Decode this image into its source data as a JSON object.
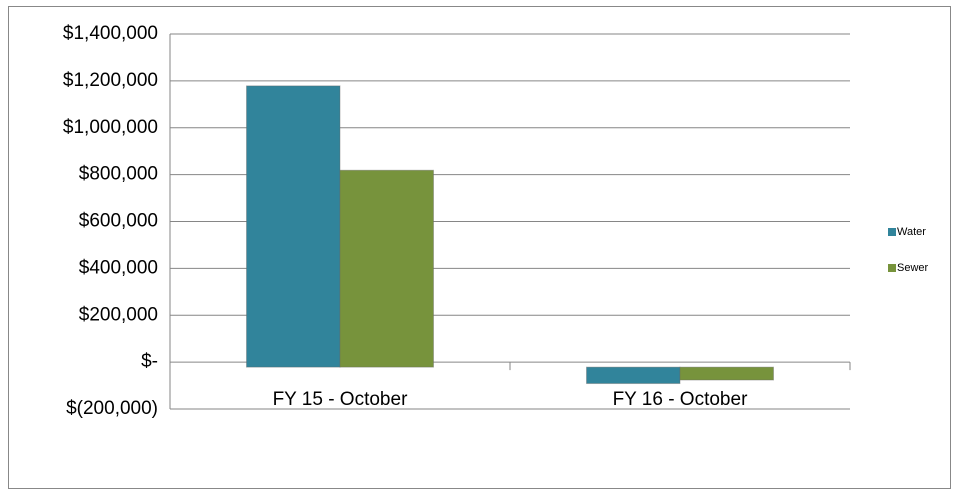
{
  "chart_data": {
    "type": "bar",
    "categories": [
      "FY 15 - October",
      "FY 16 - October"
    ],
    "series": [
      {
        "name": "Water",
        "color": "#31849b",
        "values": [
          1200000,
          -70000
        ]
      },
      {
        "name": "Sewer",
        "color": "#77933c",
        "values": [
          840000,
          -55000
        ]
      }
    ],
    "ylim": [
      -200000,
      1400000
    ],
    "yticks": [
      {
        "value": -200000,
        "label": "$(200,000)"
      },
      {
        "value": 0,
        "label": "$-"
      },
      {
        "value": 200000,
        "label": "$200,000"
      },
      {
        "value": 400000,
        "label": "$400,000"
      },
      {
        "value": 600000,
        "label": "$600,000"
      },
      {
        "value": 800000,
        "label": "$800,000"
      },
      {
        "value": 1000000,
        "label": "$1,000,000"
      },
      {
        "value": 1200000,
        "label": "$1,200,000"
      },
      {
        "value": 1400000,
        "label": "$1,400,000"
      }
    ],
    "grid": true,
    "legend": "right"
  }
}
